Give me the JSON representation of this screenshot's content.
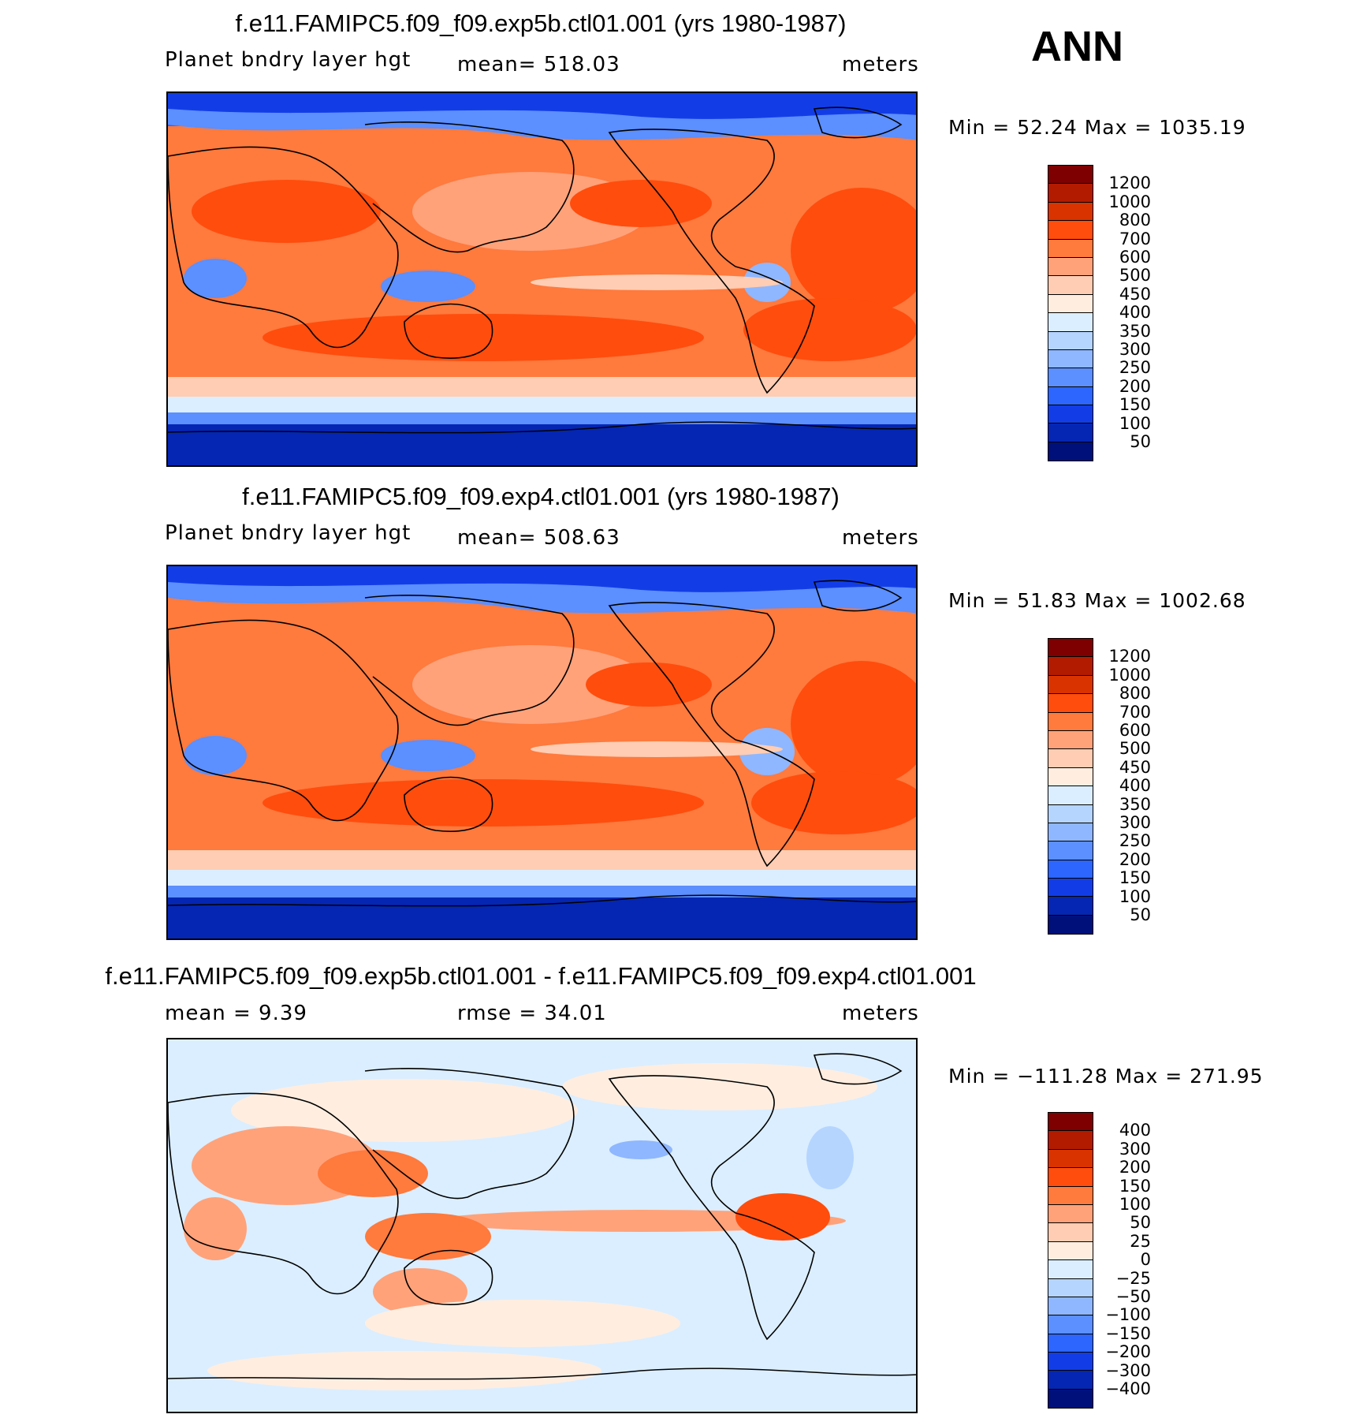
{
  "season": "ANN",
  "panels": [
    {
      "title": "f.e11.FAMIPC5.f09_f09.exp5b.ctl01.001 (yrs 1980-1987)",
      "left_label": "Planet bndry layer hgt",
      "center_label": "mean= 518.03",
      "units": "meters",
      "minmax": "Min =   52.24 Max = 1035.19",
      "colorbar_ticks": [
        "1200",
        "1000",
        "800",
        "700",
        "600",
        "500",
        "450",
        "400",
        "350",
        "300",
        "250",
        "200",
        "150",
        "100",
        "50"
      ],
      "colorbar_colors": [
        "#7f0000",
        "#b31b00",
        "#d93300",
        "#ff4d0d",
        "#ff7a3d",
        "#ffa27a",
        "#ffcdb3",
        "#ffeee0",
        "#dbeeff",
        "#b5d5ff",
        "#8fb7ff",
        "#5c8fff",
        "#2d66ff",
        "#123de6",
        "#0526b3",
        "#00107a"
      ]
    },
    {
      "title": "f.e11.FAMIPC5.f09_f09.exp4.ctl01.001 (yrs 1980-1987)",
      "left_label": "Planet bndry layer hgt",
      "center_label": "mean= 508.63",
      "units": "meters",
      "minmax": "Min =   51.83 Max = 1002.68",
      "colorbar_ticks": [
        "1200",
        "1000",
        "800",
        "700",
        "600",
        "500",
        "450",
        "400",
        "350",
        "300",
        "250",
        "200",
        "150",
        "100",
        "50"
      ],
      "colorbar_colors": [
        "#7f0000",
        "#b31b00",
        "#d93300",
        "#ff4d0d",
        "#ff7a3d",
        "#ffa27a",
        "#ffcdb3",
        "#ffeee0",
        "#dbeeff",
        "#b5d5ff",
        "#8fb7ff",
        "#5c8fff",
        "#2d66ff",
        "#123de6",
        "#0526b3",
        "#00107a"
      ]
    },
    {
      "title": "f.e11.FAMIPC5.f09_f09.exp5b.ctl01.001 - f.e11.FAMIPC5.f09_f09.exp4.ctl01.001",
      "left_label": "mean =    9.39",
      "center_label": "rmse =   34.01",
      "units": "meters",
      "minmax": "Min = −111.28 Max =  271.95",
      "colorbar_ticks": [
        "400",
        "300",
        "200",
        "150",
        "100",
        "50",
        "25",
        "0",
        "−25",
        "−50",
        "−100",
        "−150",
        "−200",
        "−300",
        "−400"
      ],
      "colorbar_colors": [
        "#7f0000",
        "#b31b00",
        "#d93300",
        "#ff4d0d",
        "#ff7a3d",
        "#ffa27a",
        "#ffcdb3",
        "#ffeee0",
        "#dbeeff",
        "#b5d5ff",
        "#8fb7ff",
        "#5c8fff",
        "#2d66ff",
        "#123de6",
        "#0526b3",
        "#00107a"
      ]
    }
  ]
}
